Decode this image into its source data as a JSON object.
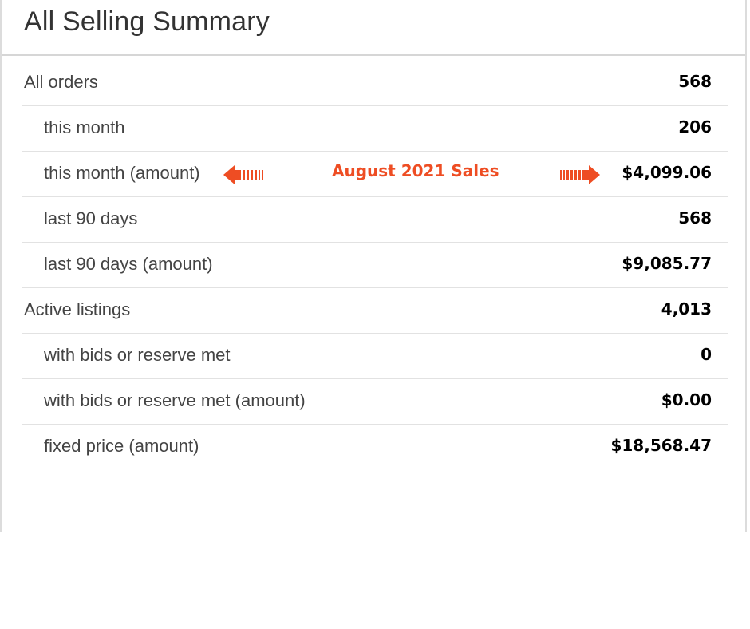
{
  "panel": {
    "title": "All Selling Summary"
  },
  "annotation": {
    "text": "August 2021 Sales",
    "color": "#ee4d23",
    "left_icon": "arrow-left-icon",
    "right_icon": "arrow-right-icon"
  },
  "rows": [
    {
      "label": "All orders",
      "value": "568"
    },
    {
      "label": "this month",
      "value": "206"
    },
    {
      "label": "this month (amount)",
      "value": "$4,099.06"
    },
    {
      "label": "last 90 days",
      "value": "568"
    },
    {
      "label": "last 90 days (amount)",
      "value": "$9,085.77"
    },
    {
      "label": "Active listings",
      "value": "4,013"
    },
    {
      "label": "with bids or reserve met",
      "value": "0"
    },
    {
      "label": "with bids or reserve met (amount)",
      "value": "$0.00"
    },
    {
      "label": "fixed price (amount)",
      "value": "$18,568.47"
    }
  ]
}
